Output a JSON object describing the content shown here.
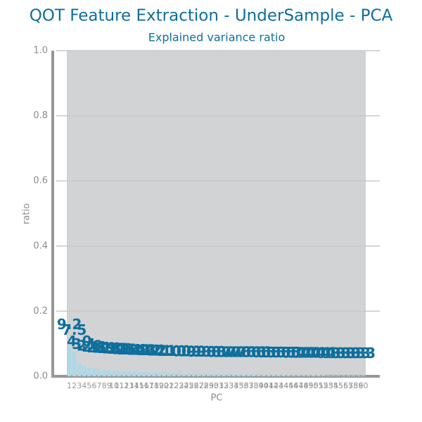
{
  "chart_data": {
    "type": "bar",
    "title": "QOT Feature Extraction - UnderSample - PCA",
    "subtitle": "Explained variance ratio",
    "x_label": "PC",
    "y_label": "ratio",
    "categories": [
      "1",
      "2",
      "3",
      "4",
      "5",
      "6",
      "7",
      "8",
      "9",
      "10",
      "11",
      "12",
      "13",
      "14",
      "15",
      "16",
      "17",
      "18",
      "19",
      "20",
      "21",
      "22",
      "23",
      "24",
      "25",
      "26",
      "27",
      "28",
      "29",
      "30",
      "31",
      "32",
      "33",
      "34",
      "35",
      "36",
      "37",
      "38",
      "39",
      "40",
      "41",
      "42",
      "43",
      "44",
      "45",
      "46",
      "47",
      "48",
      "49",
      "50",
      "51",
      "52",
      "53",
      "54",
      "55",
      "56",
      "57",
      "58",
      "59",
      "60"
    ],
    "values": [
      0.092,
      0.075,
      0.04,
      0.031,
      0.026,
      0.023,
      0.021,
      0.019,
      0.018,
      0.017,
      0.016,
      0.015,
      0.014,
      0.014,
      0.013,
      0.013,
      0.012,
      0.012,
      0.011,
      0.011,
      0.01,
      0.01,
      0.01,
      0.009,
      0.009,
      0.009,
      0.008,
      0.008,
      0.008,
      0.008,
      0.007,
      0.007,
      0.007,
      0.007,
      0.006,
      0.006,
      0.006,
      0.006,
      0.006,
      0.005,
      0.005,
      0.005,
      0.005,
      0.005,
      0.005,
      0.004,
      0.004,
      0.004,
      0.004,
      0.004,
      0.004,
      0.004,
      0.003,
      0.003,
      0.003,
      0.003,
      0.003,
      0.003,
      0.003,
      0.003
    ],
    "value_labels": [
      "9.2",
      "7.5",
      "4.0",
      "3.1",
      "2.6",
      "2.3",
      "2.1",
      "1.9",
      "1.8",
      "1.7",
      "1.6",
      "1.5",
      "1.4",
      "1.4",
      "1.3",
      "1.3",
      "1.2",
      "1.2",
      "1.1",
      "1.1",
      "1.0",
      "1.0",
      "1.0",
      "0.9",
      "0.9",
      "0.9",
      "0.8",
      "0.8",
      "0.8",
      "0.8",
      "0.7",
      "0.7",
      "0.7",
      "0.7",
      "0.6",
      "0.6",
      "0.6",
      "0.6",
      "0.6",
      "0.5",
      "0.5",
      "0.5",
      "0.5",
      "0.5",
      "0.5",
      "0.4",
      "0.4",
      "0.4",
      "0.4",
      "0.4",
      "0.4",
      "0.4",
      "0.3",
      "0.3",
      "0.3",
      "0.3",
      "0.3",
      "0.3",
      "0.3",
      "0.3"
    ],
    "color": "#add8e6",
    "label_color": "#0e6f9c",
    "ylim": [
      0,
      1
    ],
    "yticks": [
      {
        "value": 0,
        "label": "0.0"
      },
      0.2,
      0.4,
      0.6,
      0.8,
      {
        "value": 1,
        "label": "1.0"
      }
    ],
    "grid": true
  }
}
